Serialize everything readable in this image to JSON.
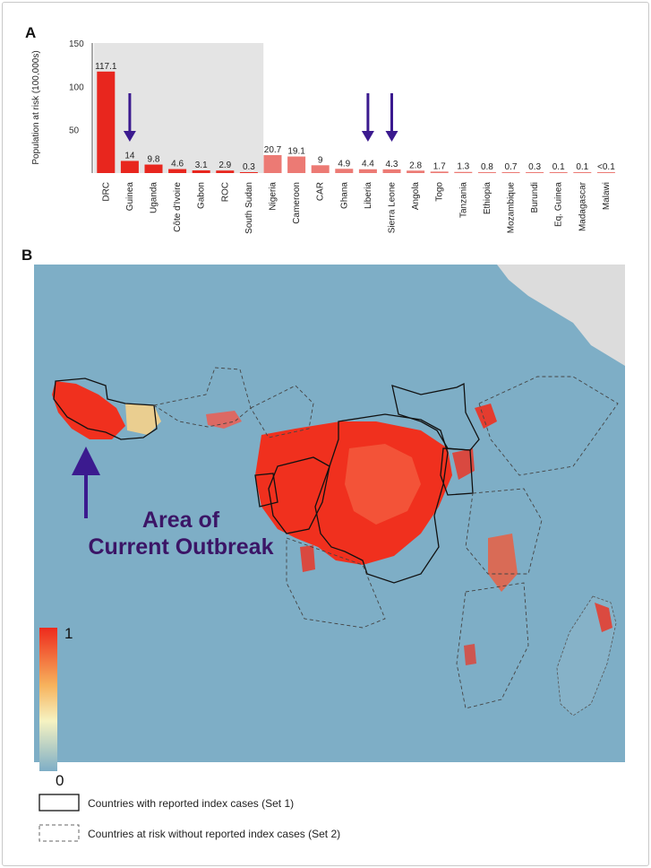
{
  "panel_a_label": "A",
  "panel_b_label": "B",
  "chart_data": {
    "type": "bar",
    "ylabel": "Population at risk (100,000s)",
    "ylim": [
      0,
      150
    ],
    "yticks": [
      "50",
      "100",
      "150"
    ],
    "categories": [
      "DRC",
      "Guinea",
      "Uganda",
      "Côte d'Ivoire",
      "Gabon",
      "ROC",
      "South Sudan",
      "Nigeria",
      "Cameroon",
      "CAR",
      "Ghana",
      "Liberia",
      "Sierra Leone",
      "Angola",
      "Togo",
      "Tanzania",
      "Ethiopia",
      "Mozambique",
      "Burundi",
      "Eq. Guinea",
      "Madagascar",
      "Malawi"
    ],
    "values": [
      117.1,
      14,
      9.8,
      4.6,
      3.1,
      2.9,
      0.3,
      20.7,
      19.1,
      9,
      4.9,
      4.4,
      4.3,
      2.8,
      1.7,
      1.3,
      0.8,
      0.7,
      0.3,
      0.1,
      0.1,
      0.05
    ],
    "value_labels": [
      "117.1",
      "14",
      "9.8",
      "4.6",
      "3.1",
      "2.9",
      "0.3",
      "20.7",
      "19.1",
      "9",
      "4.9",
      "4.4",
      "4.3",
      "2.8",
      "1.7",
      "1.3",
      "0.8",
      "0.7",
      "0.3",
      "0.1",
      "0.1",
      "<0.1"
    ],
    "set1_count": 7,
    "arrow_categories": [
      "Guinea",
      "Liberia",
      "Sierra Leone"
    ],
    "colors": {
      "set1": "#e8261e",
      "set2": "#ec7a74",
      "shade": "#e4e4e4",
      "arrow": "#3b1a8f"
    }
  },
  "map": {
    "annotation_line1": "Area of",
    "annotation_line2": "Current Outbreak",
    "scale_max": "1",
    "scale_min": "0",
    "legend_set1": "Countries with reported index cases (Set 1)",
    "legend_set2": "Countries at risk without reported index cases (Set 2)",
    "colors": {
      "ocean_land": "#7eaec6",
      "high": "#f0301e",
      "low": "#8fb8cc",
      "nodata": "#dcdcdc"
    }
  }
}
